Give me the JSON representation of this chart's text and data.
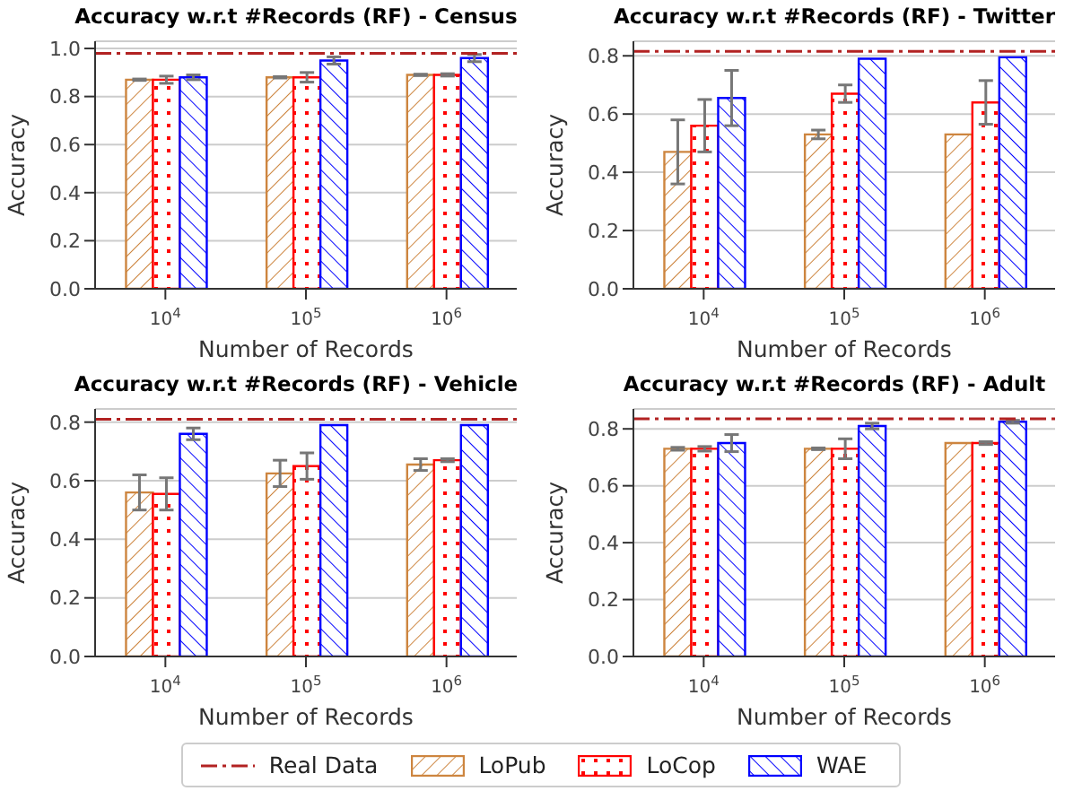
{
  "chart_data": [
    {
      "type": "bar",
      "title": "Accuracy w.r.t #Records (RF) - Census",
      "xlabel": "Number of Records",
      "ylabel": "Accuracy",
      "categories": [
        "10$^{4}$",
        "10$^{5}$",
        "10$^{6}$"
      ],
      "series": [
        {
          "name": "LoPub",
          "color": "#cd853f",
          "values": [
            0.87,
            0.88,
            0.89
          ],
          "errors": [
            0.003,
            0.003,
            0.003
          ]
        },
        {
          "name": "LoCop",
          "color": "#ff0000",
          "values": [
            0.87,
            0.88,
            0.89
          ],
          "errors": [
            0.015,
            0.02,
            0.005
          ]
        },
        {
          "name": "WAE",
          "color": "#0000ff",
          "values": [
            0.88,
            0.95,
            0.96
          ],
          "errors": [
            0.01,
            0.015,
            0.015
          ]
        }
      ],
      "ref_lines": [
        {
          "axis": "y",
          "value": 0.98,
          "label": "Real Data",
          "color": "#b22222",
          "line_style": "dashdot"
        }
      ],
      "ylim": [
        0,
        1.03
      ],
      "yticks": [
        {
          "value": 0,
          "label": "0.0"
        },
        {
          "value": 0.2,
          "label": "0.2"
        },
        {
          "value": 0.4,
          "label": "0.4"
        },
        {
          "value": 0.6,
          "label": "0.6"
        },
        {
          "value": 0.8,
          "label": "0.8"
        },
        {
          "value": 1,
          "label": "1.0"
        }
      ],
      "grid": "y",
      "legend": "bottom"
    },
    {
      "type": "bar",
      "title": "Accuracy w.r.t #Records (RF) - Twitter",
      "xlabel": "Number of Records",
      "ylabel": "Accuracy",
      "categories": [
        "10$^{4}$",
        "10$^{5}$",
        "10$^{6}$"
      ],
      "series": [
        {
          "color": "#cd853f",
          "values": [
            0.47,
            0.53,
            0.53
          ],
          "errors": [
            0.11,
            0.015,
            null
          ]
        },
        {
          "color": "#ff0000",
          "values": [
            0.56,
            0.67,
            0.64
          ],
          "errors": [
            0.09,
            0.03,
            0.075
          ]
        },
        {
          "color": "#0000ff",
          "values": [
            0.655,
            0.79,
            0.795
          ],
          "errors": [
            0.095,
            null,
            null
          ]
        }
      ],
      "ref_lines": [
        {
          "axis": "y",
          "value": 0.815,
          "color": "#b22222",
          "line_style": "dashdot"
        }
      ],
      "ylim": [
        0,
        0.85
      ],
      "yticks": [
        {
          "value": 0,
          "label": "0.0"
        },
        {
          "value": 0.2,
          "label": "0.2"
        },
        {
          "value": 0.4,
          "label": "0.4"
        },
        {
          "value": 0.6,
          "label": "0.6"
        },
        {
          "value": 0.8,
          "label": "0.8"
        }
      ],
      "grid": "y"
    },
    {
      "type": "bar",
      "title": "Accuracy w.r.t #Records (RF) - Vehicle",
      "xlabel": "Number of Records",
      "ylabel": "Accuracy",
      "categories": [
        "10$^{4}$",
        "10$^{5}$",
        "10$^{6}$"
      ],
      "series": [
        {
          "color": "#cd853f",
          "values": [
            0.56,
            0.625,
            0.655
          ],
          "errors": [
            0.06,
            0.045,
            0.02
          ]
        },
        {
          "color": "#ff0000",
          "values": [
            0.555,
            0.65,
            0.67
          ],
          "errors": [
            0.055,
            0.045,
            0.005
          ]
        },
        {
          "color": "#0000ff",
          "values": [
            0.76,
            0.79,
            0.79
          ],
          "errors": [
            0.02,
            null,
            null
          ]
        }
      ],
      "ref_lines": [
        {
          "axis": "y",
          "value": 0.81,
          "color": "#b22222",
          "line_style": "dashdot"
        }
      ],
      "ylim": [
        0,
        0.845
      ],
      "yticks": [
        {
          "value": 0,
          "label": "0.0"
        },
        {
          "value": 0.2,
          "label": "0.2"
        },
        {
          "value": 0.4,
          "label": "0.4"
        },
        {
          "value": 0.6,
          "label": "0.6"
        },
        {
          "value": 0.8,
          "label": "0.8"
        }
      ],
      "grid": "y"
    },
    {
      "type": "bar",
      "title": "Accuracy w.r.t #Records (RF) - Adult",
      "xlabel": "Number of Records",
      "ylabel": "Accuracy",
      "categories": [
        "10$^{4}$",
        "10$^{5}$",
        "10$^{6}$"
      ],
      "series": [
        {
          "color": "#cd853f",
          "values": [
            0.73,
            0.73,
            0.75
          ],
          "errors": [
            0.005,
            0.003,
            null
          ]
        },
        {
          "color": "#ff0000",
          "values": [
            0.73,
            0.73,
            0.75
          ],
          "errors": [
            0.008,
            0.035,
            0.005
          ]
        },
        {
          "color": "#0000ff",
          "values": [
            0.75,
            0.81,
            0.825
          ],
          "errors": [
            0.03,
            0.01,
            0.005
          ]
        }
      ],
      "ref_lines": [
        {
          "axis": "y",
          "value": 0.835,
          "color": "#b22222",
          "line_style": "dashdot"
        }
      ],
      "ylim": [
        0,
        0.87
      ],
      "yticks": [
        {
          "value": 0,
          "label": "0.0"
        },
        {
          "value": 0.2,
          "label": "0.2"
        },
        {
          "value": 0.4,
          "label": "0.4"
        },
        {
          "value": 0.6,
          "label": "0.6"
        },
        {
          "value": 0.8,
          "label": "0.8"
        }
      ],
      "grid": "y"
    }
  ]
}
